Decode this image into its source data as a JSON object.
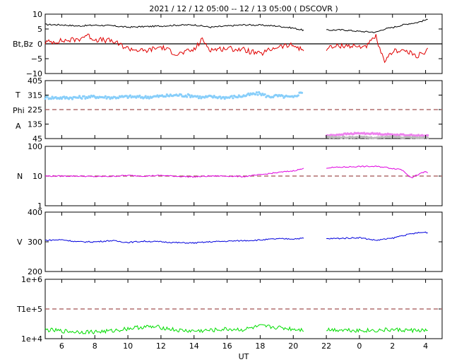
{
  "title": "2021 / 12 / 12   05:00  --  12 / 13   05:00 ( DSCOVR )",
  "x_axis": {
    "label": "UT",
    "ticks": [
      "6",
      "8",
      "10",
      "12",
      "14",
      "16",
      "18",
      "20",
      "22",
      "0",
      "2",
      "4"
    ],
    "range_hours": [
      5,
      29
    ]
  },
  "colors": {
    "bt": "#000000",
    "bz": "#e00000",
    "temp_ang": "#87cefa",
    "phi": "#ee82ee",
    "alpha": "#bbbbbb",
    "density": "#e000e0",
    "speed": "#0000dd",
    "temperature": "#00dd00",
    "ref_line": "#a05050"
  },
  "chart_data": [
    {
      "type": "line",
      "panel": "magnetic-field",
      "ylabel": "Bt,Bz",
      "ylim": [
        -10,
        10
      ],
      "yticks": [
        "10",
        "5",
        "0",
        "−5",
        "−10"
      ],
      "reference_lines": [
        {
          "y": 0,
          "style": "solid"
        }
      ],
      "series": [
        {
          "name": "Bt",
          "x": [
            5,
            6,
            7,
            8,
            9,
            10,
            11,
            12,
            13,
            14,
            15,
            16,
            17,
            18,
            19,
            20,
            20.7,
            21.5,
            22,
            23,
            24,
            25,
            25.5,
            26,
            26.5,
            27,
            27.5,
            28,
            28.2,
            28.9,
            29
          ],
          "y": [
            6.5,
            6.4,
            6.0,
            6.3,
            6.1,
            5.6,
            5.8,
            6.0,
            6.3,
            6.4,
            5.6,
            6.0,
            6.4,
            6.3,
            6.0,
            5.3,
            4.5,
            null,
            4.6,
            4.7,
            4.2,
            3.9,
            5.0,
            5.5,
            6.2,
            6.8,
            7.2,
            8.0,
            8.2,
            null,
            null
          ]
        },
        {
          "name": "Bz",
          "x": [
            5,
            6,
            7,
            7.5,
            8,
            9,
            10,
            11,
            12,
            13,
            14,
            14.5,
            15,
            16,
            17,
            18,
            19,
            20,
            20.7,
            21.5,
            22,
            23,
            24,
            24.5,
            25,
            25.3,
            25.6,
            26,
            26.5,
            27,
            27.5,
            28,
            28.2,
            28.9,
            29
          ],
          "y": [
            0.5,
            1,
            1.5,
            3,
            1.5,
            1,
            -1.5,
            -2.5,
            -1,
            -3.5,
            -2,
            1.5,
            -2,
            -1.5,
            -2,
            -3.5,
            -1,
            -0.5,
            -2.5,
            null,
            -1.5,
            -0.5,
            -1,
            -0.5,
            2.5,
            -3.5,
            -6,
            -2.5,
            -2,
            -3,
            -4,
            -3,
            -1.5,
            null,
            null
          ]
        }
      ]
    },
    {
      "type": "scatter",
      "panel": "plasma-angles",
      "ylabels": [
        "T",
        "Phi",
        "A"
      ],
      "ylim": [
        45,
        405
      ],
      "yticks": [
        "405",
        "315",
        "225",
        "135",
        "45"
      ],
      "reference_lines": [
        {
          "y": 225,
          "style": "dashed"
        }
      ],
      "series": [
        {
          "name": "T",
          "x": [
            5,
            6,
            7,
            8,
            9,
            10,
            11,
            12,
            13,
            14,
            14.5,
            15,
            16,
            17,
            17.5,
            18,
            18.5,
            19,
            20,
            20.6
          ],
          "y": [
            300,
            298,
            300,
            305,
            300,
            305,
            302,
            308,
            315,
            310,
            300,
            305,
            300,
            310,
            320,
            325,
            305,
            310,
            300,
            340
          ]
        },
        {
          "name": "Phi",
          "x": [
            22,
            23,
            24,
            25,
            26,
            27,
            28,
            28.2
          ],
          "y": [
            63,
            72,
            78,
            75,
            70,
            67,
            62,
            64
          ]
        },
        {
          "name": "A",
          "x": [
            22,
            23,
            24,
            25,
            26,
            27,
            28,
            28.2
          ],
          "y": [
            55,
            52,
            54,
            50,
            56,
            53,
            50,
            52
          ]
        }
      ]
    },
    {
      "type": "line",
      "panel": "density",
      "ylabel": "N",
      "yscale": "log",
      "ylim": [
        1,
        100
      ],
      "yticks": [
        "100",
        "10",
        "1"
      ],
      "reference_lines": [
        {
          "y": 10,
          "style": "dashed"
        }
      ],
      "series": [
        {
          "name": "N",
          "x": [
            5,
            6,
            7,
            8,
            9,
            10,
            11,
            12,
            13,
            14,
            15,
            16,
            17,
            18,
            19,
            20,
            20.7,
            21.5,
            22,
            23,
            24,
            25,
            25.5,
            26,
            26.5,
            27,
            27.2,
            28,
            28.2,
            28.9,
            29
          ],
          "y": [
            10,
            10,
            10,
            9.6,
            9.8,
            10.5,
            10,
            10.5,
            9.8,
            9.4,
            10,
            10,
            9.6,
            11,
            13,
            15,
            18,
            null,
            19,
            20,
            21,
            21,
            20,
            18,
            17,
            10,
            9,
            14,
            12,
            null,
            null
          ]
        }
      ]
    },
    {
      "type": "line",
      "panel": "speed",
      "ylabel": "V",
      "ylim": [
        200,
        400
      ],
      "yticks": [
        "400",
        "300",
        "200"
      ],
      "series": [
        {
          "name": "V",
          "x": [
            5,
            6,
            7,
            8,
            9,
            10,
            11,
            12,
            13,
            14,
            15,
            16,
            17,
            18,
            19,
            20,
            20.7,
            21.5,
            22,
            23,
            24,
            25,
            26,
            26.5,
            27,
            27.5,
            28,
            28.2,
            28.9,
            29
          ],
          "y": [
            305,
            307,
            300,
            300,
            304,
            298,
            302,
            300,
            297,
            296,
            300,
            302,
            304,
            306,
            310,
            310,
            312,
            null,
            310,
            312,
            314,
            305,
            312,
            320,
            325,
            330,
            332,
            330,
            null,
            null
          ]
        }
      ]
    },
    {
      "type": "line",
      "panel": "temperature",
      "ylabel": "T",
      "yscale": "log",
      "ylim": [
        10000,
        1000000
      ],
      "yticks": [
        "1e+6",
        "1e+5",
        "1e+4"
      ],
      "reference_lines": [
        {
          "y": 100000,
          "style": "dashed"
        }
      ],
      "series": [
        {
          "name": "T",
          "x": [
            5,
            6,
            7,
            8,
            9,
            10,
            11,
            12,
            13,
            14,
            15,
            16,
            17,
            18,
            19,
            20,
            20.7,
            21.5,
            22,
            23,
            24,
            25,
            26,
            27,
            28,
            28.2,
            28.9,
            29
          ],
          "y": [
            20000,
            18000,
            17000,
            17000,
            18000,
            22000,
            25000,
            24000,
            19000,
            18000,
            19000,
            21000,
            20000,
            26000,
            24000,
            21000,
            20000,
            null,
            20000,
            20000,
            19000,
            19000,
            20000,
            19000,
            19000,
            19000,
            null,
            null
          ]
        }
      ]
    }
  ]
}
